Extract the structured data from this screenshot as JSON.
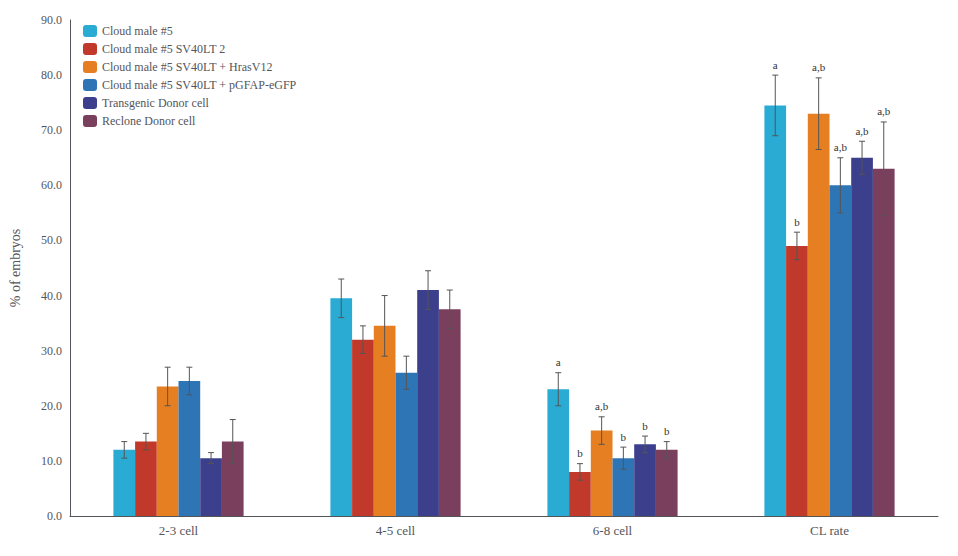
{
  "chart_data": {
    "type": "bar",
    "categories": [
      "2-3 cell",
      "4-5 cell",
      "6-8 cell",
      "CL rate"
    ],
    "series": [
      {
        "name": "Cloud male #5",
        "color": "#29ABD4",
        "values": [
          12.0,
          39.5,
          23.0,
          74.5
        ],
        "errors": [
          1.5,
          3.5,
          3.0,
          5.5
        ],
        "annotations": [
          null,
          null,
          "a",
          "a"
        ]
      },
      {
        "name": "Cloud male #5 SV40LT 2",
        "color": "#C0392B",
        "values": [
          13.5,
          32.0,
          8.0,
          49.0
        ],
        "errors": [
          1.5,
          2.5,
          1.5,
          2.5
        ],
        "annotations": [
          null,
          null,
          "b",
          "b"
        ]
      },
      {
        "name": "Cloud male #5 SV40LT + HrasV12",
        "color": "#E67E22",
        "values": [
          23.5,
          34.5,
          15.5,
          73.0
        ],
        "errors": [
          3.5,
          5.5,
          2.5,
          6.5
        ],
        "annotations": [
          null,
          null,
          "a,b",
          "a,b"
        ]
      },
      {
        "name": "Cloud male #5 SV40LT + pGFAP-eGFP",
        "color": "#2E75B6",
        "values": [
          24.5,
          26.0,
          10.5,
          60.0
        ],
        "errors": [
          2.5,
          3.0,
          2.0,
          5.0
        ],
        "annotations": [
          null,
          null,
          "b",
          "a,b"
        ]
      },
      {
        "name": "Transgenic Donor cell",
        "color": "#3B3F8C",
        "values": [
          10.5,
          41.0,
          13.0,
          65.0
        ],
        "errors": [
          1.0,
          3.5,
          1.5,
          3.0
        ],
        "annotations": [
          null,
          null,
          "b",
          "a,b"
        ]
      },
      {
        "name": "Reclone Donor cell",
        "color": "#7B3F5E",
        "values": [
          13.5,
          37.5,
          12.0,
          63.0
        ],
        "errors": [
          4.0,
          3.5,
          1.5,
          8.5
        ],
        "annotations": [
          null,
          null,
          "b",
          "a,b"
        ]
      }
    ],
    "ylabel": "% of embryos",
    "ylim": [
      0,
      90
    ],
    "yticks": [
      {
        "value": 0,
        "label": "0.0"
      },
      {
        "value": 10,
        "label": "10.0"
      },
      {
        "value": 20,
        "label": "20.0"
      },
      {
        "value": 30,
        "label": "30.0"
      },
      {
        "value": 40,
        "label": "40.0"
      },
      {
        "value": 50,
        "label": "50.0"
      },
      {
        "value": 60,
        "label": "60.0"
      },
      {
        "value": 70,
        "label": "70.0"
      },
      {
        "value": 80,
        "label": "80.0"
      },
      {
        "value": 90,
        "label": "90.0"
      }
    ],
    "grid": false,
    "legend": "upper left"
  }
}
